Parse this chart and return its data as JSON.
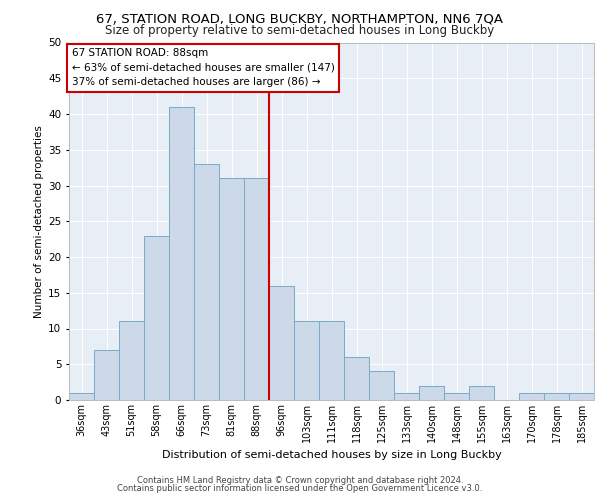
{
  "title1": "67, STATION ROAD, LONG BUCKBY, NORTHAMPTON, NN6 7QA",
  "title2": "Size of property relative to semi-detached houses in Long Buckby",
  "xlabel": "Distribution of semi-detached houses by size in Long Buckby",
  "ylabel": "Number of semi-detached properties",
  "categories": [
    "36sqm",
    "43sqm",
    "51sqm",
    "58sqm",
    "66sqm",
    "73sqm",
    "81sqm",
    "88sqm",
    "96sqm",
    "103sqm",
    "111sqm",
    "118sqm",
    "125sqm",
    "133sqm",
    "140sqm",
    "148sqm",
    "155sqm",
    "163sqm",
    "170sqm",
    "178sqm",
    "185sqm"
  ],
  "values": [
    1,
    7,
    11,
    23,
    41,
    33,
    31,
    31,
    16,
    11,
    11,
    6,
    4,
    1,
    2,
    1,
    2,
    0,
    1,
    1,
    1
  ],
  "bar_color": "#ccd9e8",
  "bar_edge_color": "#7aaac8",
  "vline_x_index": 7,
  "vline_color": "#cc0000",
  "annotation_title": "67 STATION ROAD: 88sqm",
  "annotation_line1": "← 63% of semi-detached houses are smaller (147)",
  "annotation_line2": "37% of semi-detached houses are larger (86) →",
  "annotation_box_color": "#ffffff",
  "annotation_box_edge": "#cc0000",
  "ylim": [
    0,
    50
  ],
  "yticks": [
    0,
    5,
    10,
    15,
    20,
    25,
    30,
    35,
    40,
    45,
    50
  ],
  "footer1": "Contains HM Land Registry data © Crown copyright and database right 2024.",
  "footer2": "Contains public sector information licensed under the Open Government Licence v3.0.",
  "bg_color": "#ffffff",
  "plot_bg_color": "#e8eef5"
}
